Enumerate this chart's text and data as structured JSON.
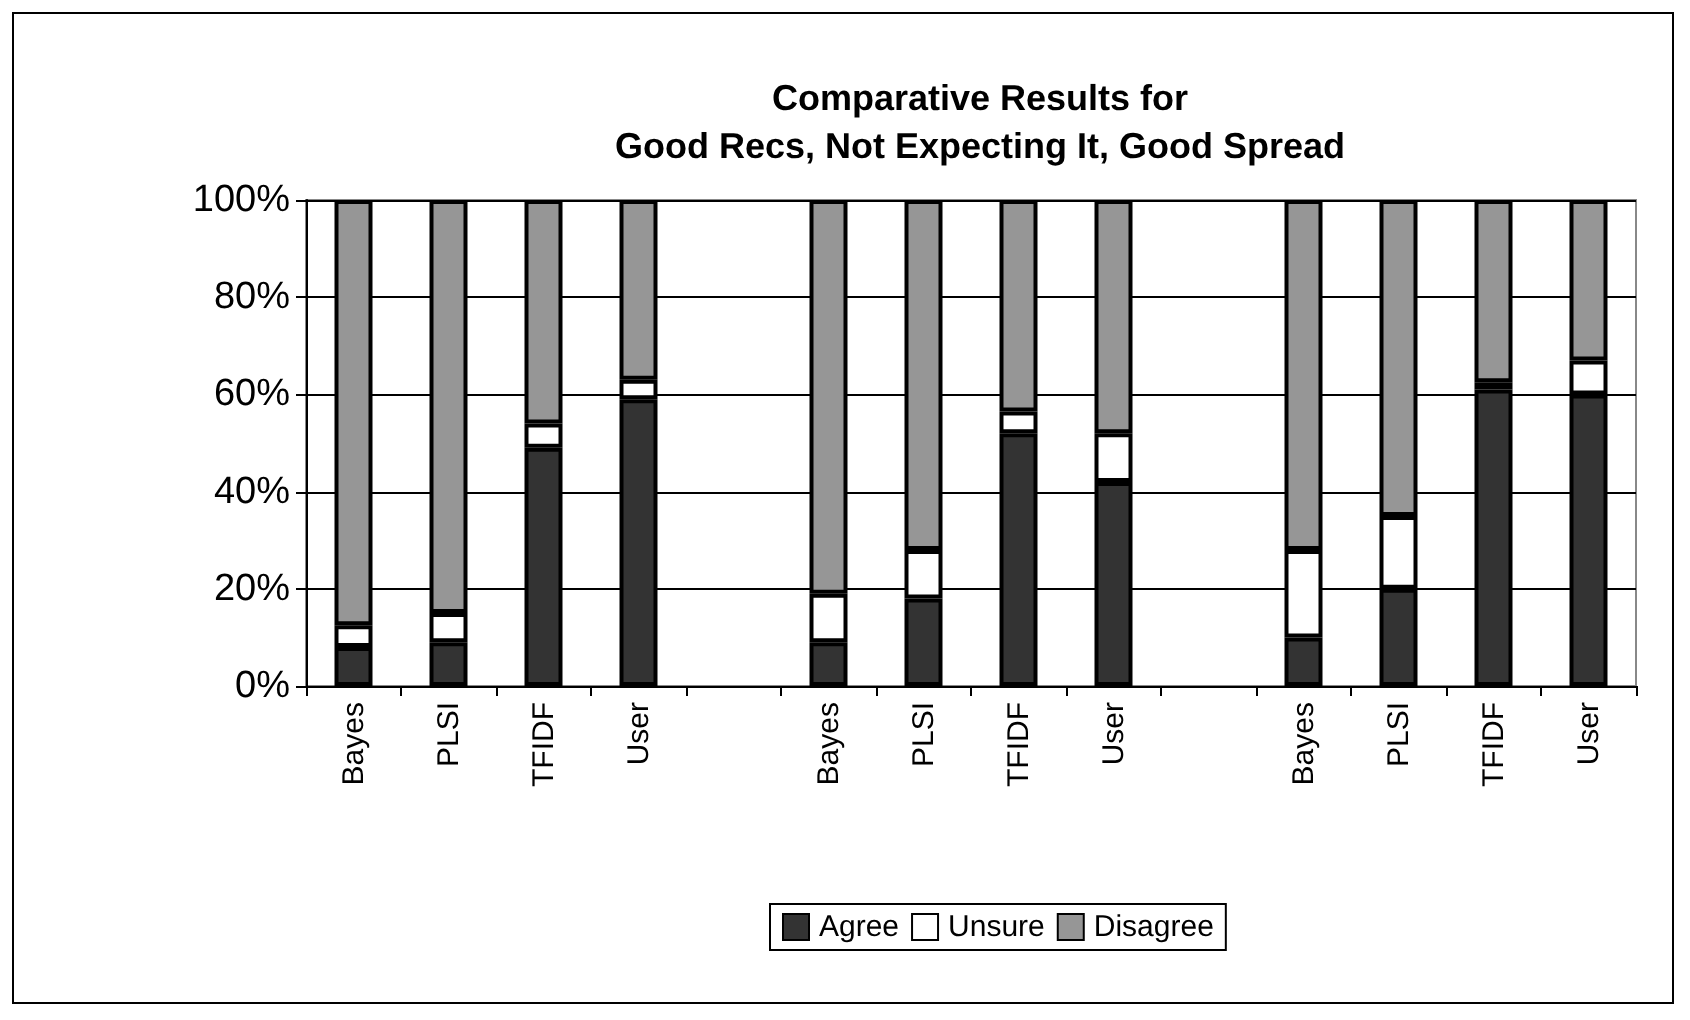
{
  "chart_data": {
    "type": "bar",
    "title": "Comparative Results for\nGood Recs, Not Expecting It, Good Spread",
    "categories": [
      "Bayes",
      "PLSI",
      "TFIDF",
      "User",
      null,
      "Bayes",
      "PLSI",
      "TFIDF",
      "User",
      null,
      "Bayes",
      "PLSI",
      "TFIDF",
      "User"
    ],
    "stacked": true,
    "series": [
      {
        "name": "Agree",
        "color": "#333333",
        "values": [
          8,
          9,
          49,
          59,
          null,
          9,
          18,
          52,
          42,
          null,
          10,
          20,
          61,
          60
        ]
      },
      {
        "name": "Unsure",
        "color": "#ffffff",
        "values": [
          4.5,
          6,
          5,
          4,
          null,
          10,
          10,
          4.5,
          10,
          null,
          18,
          15,
          1.5,
          7
        ]
      },
      {
        "name": "Disagree",
        "color": "#969696",
        "values": [
          87.5,
          85,
          46,
          37,
          null,
          81,
          72,
          43.5,
          48,
          null,
          72,
          65,
          37.5,
          33
        ]
      }
    ],
    "ylim": [
      0,
      100
    ],
    "yticks": [
      {
        "value": 0,
        "label": "0%"
      },
      {
        "value": 20,
        "label": "20%"
      },
      {
        "value": 40,
        "label": "40%"
      },
      {
        "value": 60,
        "label": "60%"
      },
      {
        "value": 80,
        "label": "80%"
      },
      {
        "value": 100,
        "label": "100%"
      }
    ],
    "grid": "y",
    "legend": "bottom"
  }
}
